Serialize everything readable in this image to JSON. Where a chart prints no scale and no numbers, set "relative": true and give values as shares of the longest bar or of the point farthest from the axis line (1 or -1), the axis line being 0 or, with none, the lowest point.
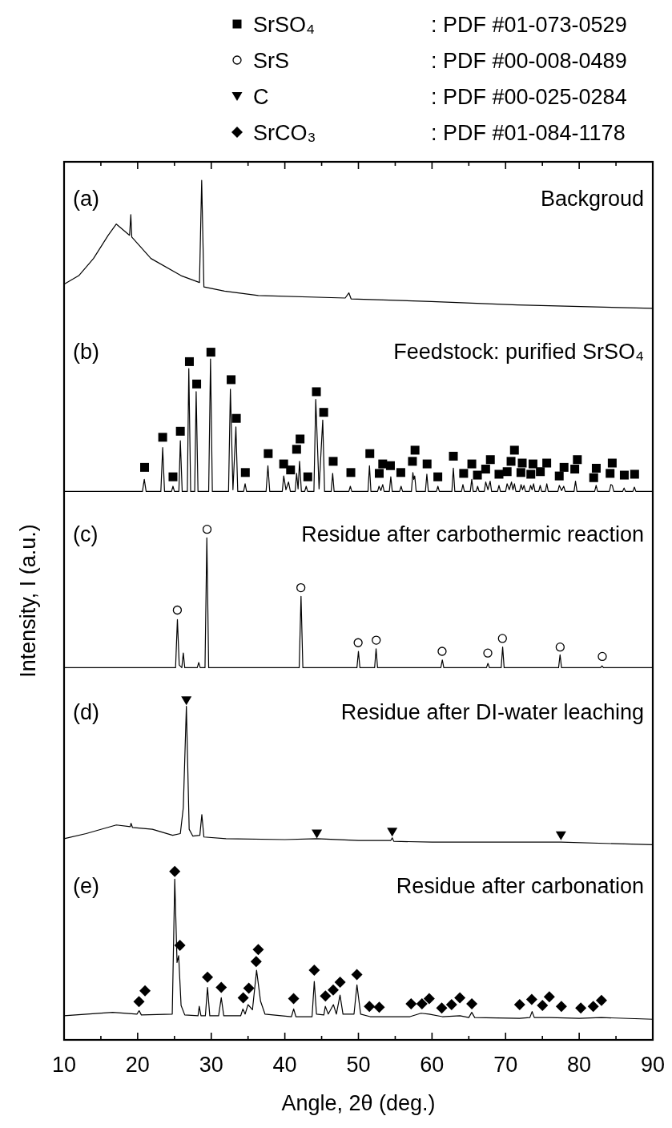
{
  "chart_data": {
    "type": "line",
    "relative": true,
    "xlabel": "Angle, 2θ (deg.)",
    "ylabel": "Intensity, I (a.u.)",
    "xlim": [
      10,
      90
    ],
    "xticks": [
      10,
      {
        "value": 15,
        "label": null
      },
      20,
      {
        "value": 25,
        "label": null
      },
      30,
      {
        "value": 35,
        "label": null
      },
      40,
      {
        "value": 45,
        "label": null
      },
      50,
      {
        "value": 55,
        "label": null
      },
      60,
      {
        "value": 65,
        "label": null
      },
      70,
      {
        "value": 75,
        "label": null
      },
      80,
      {
        "value": 85,
        "label": null
      },
      90
    ],
    "legend": "top",
    "annotations": [
      ": PDF #01-073-0529",
      ": PDF #00-008-0489",
      ": PDF #00-025-0284",
      ": PDF #01-084-1178",
      "(a)",
      "Backgroud",
      "(b)",
      "Feedstock: purified SrSO₄",
      "(c)",
      "Residue after carbothermic reaction",
      "(d)",
      "Residue after DI-water leaching",
      "(e)",
      "Residue after carbonation"
    ],
    "series": [
      {
        "color": "#000000",
        "x": [
          10,
          12,
          14,
          16,
          17.1,
          18.9,
          19.07,
          19.2,
          21.8,
          25.9,
          28.4,
          28.7,
          29.0,
          31.8,
          36.4,
          48.2,
          48.7,
          49.0,
          59.9,
          71.6,
          90
        ],
        "values": [
          0.879,
          0.889,
          0.909,
          0.936,
          0.949,
          0.936,
          0.96,
          0.934,
          0.909,
          0.889,
          0.881,
          1,
          0.876,
          0.871,
          0.866,
          0.863,
          0.869,
          0.862,
          0.859,
          0.855,
          0.851
        ]
      },
      {
        "color": "#000000",
        "x": [
          10,
          20.65,
          20.9,
          21.15,
          23.15,
          23.4,
          23.65,
          24.6,
          24.8,
          25.0,
          25.6,
          25.8,
          26.05,
          26.75,
          26.95,
          27.2,
          27.75,
          27.95,
          28.2,
          29.65,
          29.9,
          30.15,
          32.35,
          32.6,
          32.95,
          33.35,
          33.6,
          34.4,
          34.6,
          34.8,
          37.45,
          37.7,
          37.95,
          39.65,
          39.85,
          40.15,
          40.5,
          40.75,
          41.4,
          41.6,
          41.8,
          42.0,
          42.25,
          42.7,
          42.9,
          43.1,
          43.95,
          44.2,
          44.65,
          45.15,
          45.4,
          46.3,
          46.5,
          46.7,
          48.7,
          48.9,
          49.1,
          51.3,
          51.5,
          51.7,
          52.6,
          52.8,
          53.05,
          53.3,
          53.5,
          54.2,
          54.4,
          54.6,
          55.6,
          55.8,
          56.0,
          57.2,
          57.4,
          57.52,
          57.65,
          57.85,
          59.1,
          59.3,
          59.5,
          60.6,
          60.8,
          61.0,
          62.7,
          62.9,
          63.1,
          64.0,
          64.2,
          64.4,
          65.2,
          65.4,
          65.6,
          66.0,
          66.2,
          66.4,
          67.1,
          67.3,
          67.6,
          67.9,
          68.1,
          68.9,
          69.1,
          69.3,
          70.0,
          70.2,
          70.5,
          70.8,
          71.0,
          71.2,
          71.4,
          71.9,
          72.1,
          72.3,
          72.5,
          72.7,
          73.2,
          73.4,
          73.6,
          73.8,
          74.0,
          74.5,
          74.7,
          74.9,
          75.4,
          75.6,
          75.8,
          77.1,
          77.3,
          77.6,
          77.9,
          78.1,
          79.3,
          79.5,
          79.7,
          82.1,
          82.3,
          82.5,
          84.1,
          84.3,
          84.5,
          84.7,
          85.9,
          86.1,
          86.3,
          87.3,
          87.5,
          87.7,
          90
        ],
        "values": [
          0.638,
          0.638,
          0.652,
          0.638,
          0.638,
          0.689,
          0.638,
          0.638,
          0.644,
          0.638,
          0.638,
          0.697,
          0.638,
          0.638,
          0.781,
          0.638,
          0.638,
          0.754,
          0.638,
          0.638,
          0.792,
          0.638,
          0.638,
          0.757,
          0.64,
          0.713,
          0.638,
          0.638,
          0.647,
          0.638,
          0.638,
          0.668,
          0.638,
          0.638,
          0.656,
          0.64,
          0.649,
          0.638,
          0.638,
          0.659,
          0.641,
          0.673,
          0.638,
          0.638,
          0.644,
          0.638,
          0.638,
          0.745,
          0.641,
          0.721,
          0.638,
          0.638,
          0.659,
          0.638,
          0.638,
          0.644,
          0.638,
          0.638,
          0.668,
          0.638,
          0.638,
          0.644,
          0.639,
          0.646,
          0.638,
          0.638,
          0.655,
          0.638,
          0.638,
          0.644,
          0.638,
          0.638,
          0.66,
          0.652,
          0.656,
          0.638,
          0.638,
          0.658,
          0.638,
          0.638,
          0.644,
          0.638,
          0.638,
          0.665,
          0.638,
          0.638,
          0.646,
          0.638,
          0.638,
          0.652,
          0.638,
          0.638,
          0.644,
          0.638,
          0.638,
          0.649,
          0.64,
          0.65,
          0.638,
          0.638,
          0.645,
          0.638,
          0.638,
          0.647,
          0.64,
          0.649,
          0.64,
          0.647,
          0.638,
          0.638,
          0.646,
          0.64,
          0.645,
          0.638,
          0.638,
          0.645,
          0.64,
          0.647,
          0.638,
          0.638,
          0.645,
          0.638,
          0.638,
          0.647,
          0.638,
          0.638,
          0.645,
          0.639,
          0.644,
          0.638,
          0.638,
          0.65,
          0.638,
          0.638,
          0.645,
          0.638,
          0.638,
          0.646,
          0.645,
          0.638,
          0.638,
          0.642,
          0.638,
          0.638,
          0.643,
          0.638,
          0.638
        ]
      },
      {
        "color": "#000000",
        "x": [
          10,
          25.15,
          25.4,
          25.65,
          26.0,
          26.2,
          26.4,
          28.1,
          28.3,
          28.5,
          29.15,
          29.4,
          29.65,
          41.95,
          42.2,
          42.45,
          49.8,
          50.0,
          50.2,
          52.2,
          52.4,
          52.6,
          61.2,
          61.4,
          61.6,
          67.4,
          67.6,
          67.8,
          69.4,
          69.6,
          69.8,
          77.2,
          77.4,
          77.6,
          82.9,
          83.1,
          83.3,
          90
        ],
        "values": [
          0.433,
          0.433,
          0.489,
          0.436,
          0.433,
          0.45,
          0.433,
          0.433,
          0.439,
          0.433,
          0.433,
          0.584,
          0.433,
          0.433,
          0.516,
          0.433,
          0.433,
          0.452,
          0.433,
          0.433,
          0.455,
          0.433,
          0.433,
          0.442,
          0.433,
          0.433,
          0.438,
          0.433,
          0.433,
          0.457,
          0.433,
          0.433,
          0.448,
          0.433,
          0.433,
          0.435,
          0.433,
          0.433
        ]
      },
      {
        "color": "#000000",
        "x": [
          10,
          13,
          17.1,
          19.0,
          19.1,
          19.3,
          22,
          24.75,
          25.8,
          26.2,
          26.62,
          27.0,
          27.5,
          28.45,
          28.72,
          29.0,
          32,
          40,
          44.35,
          50,
          54.4,
          54.6,
          54.8,
          60,
          77.5,
          90
        ],
        "values": [
          0.234,
          0.24,
          0.25,
          0.248,
          0.252,
          0.247,
          0.245,
          0.238,
          0.24,
          0.27,
          0.388,
          0.245,
          0.237,
          0.238,
          0.262,
          0.236,
          0.234,
          0.233,
          0.234,
          0.232,
          0.232,
          0.235,
          0.231,
          0.23,
          0.23,
          0.227
        ]
      },
      {
        "color": "#000000",
        "x": [
          10,
          16.6,
          19.9,
          20.2,
          20.5,
          24.7,
          25.04,
          25.35,
          25.57,
          25.9,
          26.4,
          28.2,
          28.37,
          28.6,
          29.2,
          29.49,
          29.8,
          31.0,
          31.36,
          31.7,
          34.0,
          34.3,
          34.6,
          35.0,
          35.6,
          36.16,
          36.7,
          37.3,
          40.9,
          41.2,
          41.5,
          43.7,
          44.0,
          44.3,
          45.3,
          45.5,
          45.9,
          46.6,
          47.0,
          47.5,
          47.9,
          49.4,
          49.8,
          50.3,
          51.6,
          57,
          58.5,
          59.6,
          61.4,
          63.8,
          65.0,
          65.4,
          65.8,
          71.9,
          73.3,
          73.6,
          73.9,
          76,
          80,
          83.0,
          90
        ],
        "values": [
          0.028,
          0.032,
          0.03,
          0.034,
          0.029,
          0.03,
          0.187,
          0.09,
          0.098,
          0.04,
          0.029,
          0.028,
          0.039,
          0.028,
          0.028,
          0.061,
          0.028,
          0.028,
          0.049,
          0.028,
          0.028,
          0.036,
          0.03,
          0.041,
          0.035,
          0.081,
          0.045,
          0.03,
          0.027,
          0.036,
          0.027,
          0.027,
          0.068,
          0.03,
          0.029,
          0.039,
          0.03,
          0.041,
          0.03,
          0.052,
          0.03,
          0.03,
          0.064,
          0.03,
          0.027,
          0.027,
          0.031,
          0.03,
          0.027,
          0.028,
          0.026,
          0.032,
          0.026,
          0.025,
          0.026,
          0.033,
          0.026,
          0.026,
          0.025,
          0.026,
          0.024
        ]
      },
      {
        "type": "scatter",
        "name": "SrSO₄",
        "color": "#000000",
        "marker": "square",
        "x": [
          20.94,
          23.4,
          24.8,
          25.8,
          27.03,
          28.02,
          29.95,
          32.7,
          33.41,
          34.63,
          37.74,
          39.84,
          40.78,
          41.6,
          42.07,
          43.12,
          44.29,
          45.28,
          46.57,
          48.97,
          51.55,
          52.83,
          53.3,
          54.35,
          55.76,
          57.34,
          57.69,
          59.33,
          60.79,
          62.9,
          64.3,
          65.41,
          66.17,
          67.29,
          67.93,
          69.1,
          70.21,
          70.74,
          71.2,
          72.08,
          72.26,
          73.43,
          73.72,
          74.72,
          75.59,
          77.29,
          77.94,
          79.4,
          79.75,
          81.97,
          82.32,
          84.2,
          84.49,
          86.13,
          87.53
        ],
        "values": [
          0.666,
          0.701,
          0.655,
          0.708,
          0.789,
          0.763,
          0.8,
          0.768,
          0.723,
          0.66,
          0.682,
          0.67,
          0.663,
          0.687,
          0.699,
          0.655,
          0.754,
          0.73,
          0.673,
          0.66,
          0.682,
          0.659,
          0.67,
          0.668,
          0.66,
          0.673,
          0.686,
          0.67,
          0.655,
          0.679,
          0.659,
          0.67,
          0.657,
          0.664,
          0.675,
          0.658,
          0.661,
          0.673,
          0.686,
          0.66,
          0.671,
          0.658,
          0.67,
          0.661,
          0.671,
          0.656,
          0.666,
          0.664,
          0.675,
          0.654,
          0.665,
          0.659,
          0.671,
          0.657,
          0.658
        ]
      },
      {
        "type": "scatter",
        "name": "SrS",
        "color": "#000000",
        "marker": "circle",
        "x": [
          25.39,
          29.43,
          42.18,
          49.96,
          52.42,
          61.37,
          67.58,
          69.57,
          77.41,
          83.14
        ],
        "values": [
          0.5,
          0.594,
          0.526,
          0.462,
          0.465,
          0.452,
          0.45,
          0.467,
          0.457,
          0.446
        ]
      },
      {
        "type": "scatter",
        "name": "C",
        "color": "#000000",
        "marker": "triangle",
        "x": [
          26.62,
          44.35,
          54.59,
          77.52
        ],
        "values": [
          0.395,
          0.24,
          0.242,
          0.238
        ]
      },
      {
        "type": "scatter",
        "name": "SrCO₃",
        "color": "#000000",
        "marker": "diamond",
        "x": [
          20.18,
          21.0,
          25.04,
          25.74,
          29.49,
          31.36,
          34.34,
          35.1,
          36.1,
          36.39,
          41.19,
          44.0,
          45.52,
          46.57,
          47.51,
          49.79,
          51.49,
          52.83,
          57.16,
          58.63,
          59.62,
          61.32,
          62.66,
          63.78,
          65.41,
          71.91,
          73.55,
          75.01,
          75.94,
          77.58,
          80.22,
          81.91,
          83.03
        ],
        "values": [
          0.0445,
          0.057,
          0.196,
          0.11,
          0.073,
          0.061,
          0.049,
          0.06,
          0.091,
          0.105,
          0.048,
          0.081,
          0.051,
          0.058,
          0.067,
          0.076,
          0.039,
          0.038,
          0.042,
          0.042,
          0.048,
          0.037,
          0.041,
          0.049,
          0.042,
          0.041,
          0.047,
          0.04,
          0.05,
          0.039,
          0.037,
          0.039,
          0.046
        ]
      }
    ]
  }
}
